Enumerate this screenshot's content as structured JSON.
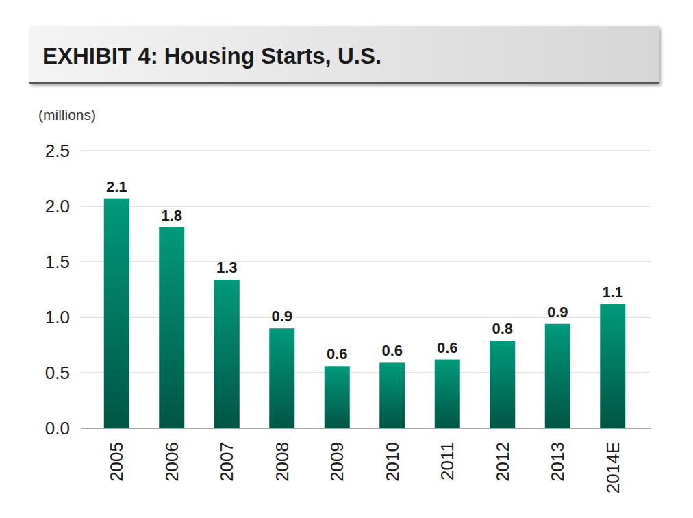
{
  "chart_data": {
    "type": "bar",
    "title": "EXHIBIT 4: Housing Starts, U.S.",
    "y_label": "(millions)",
    "categories": [
      "2005",
      "2006",
      "2007",
      "2008",
      "2009",
      "2010",
      "2011",
      "2012",
      "2013",
      "2014E"
    ],
    "values": [
      2.07,
      1.81,
      1.34,
      0.9,
      0.56,
      0.59,
      0.62,
      0.79,
      0.94,
      1.12
    ],
    "value_labels": [
      "2.1",
      "1.8",
      "1.3",
      "0.9",
      "0.6",
      "0.6",
      "0.6",
      "0.8",
      "0.9",
      "1.1"
    ],
    "color": "#009a7c",
    "ylim": [
      0,
      2.5
    ],
    "yticks": [
      {
        "value": 0,
        "label": "0.0"
      },
      0.5,
      {
        "value": 1,
        "label": "1.0"
      },
      1.5,
      {
        "value": 2,
        "label": "2.0"
      },
      2.5
    ],
    "grid": true,
    "data_labels": true
  }
}
